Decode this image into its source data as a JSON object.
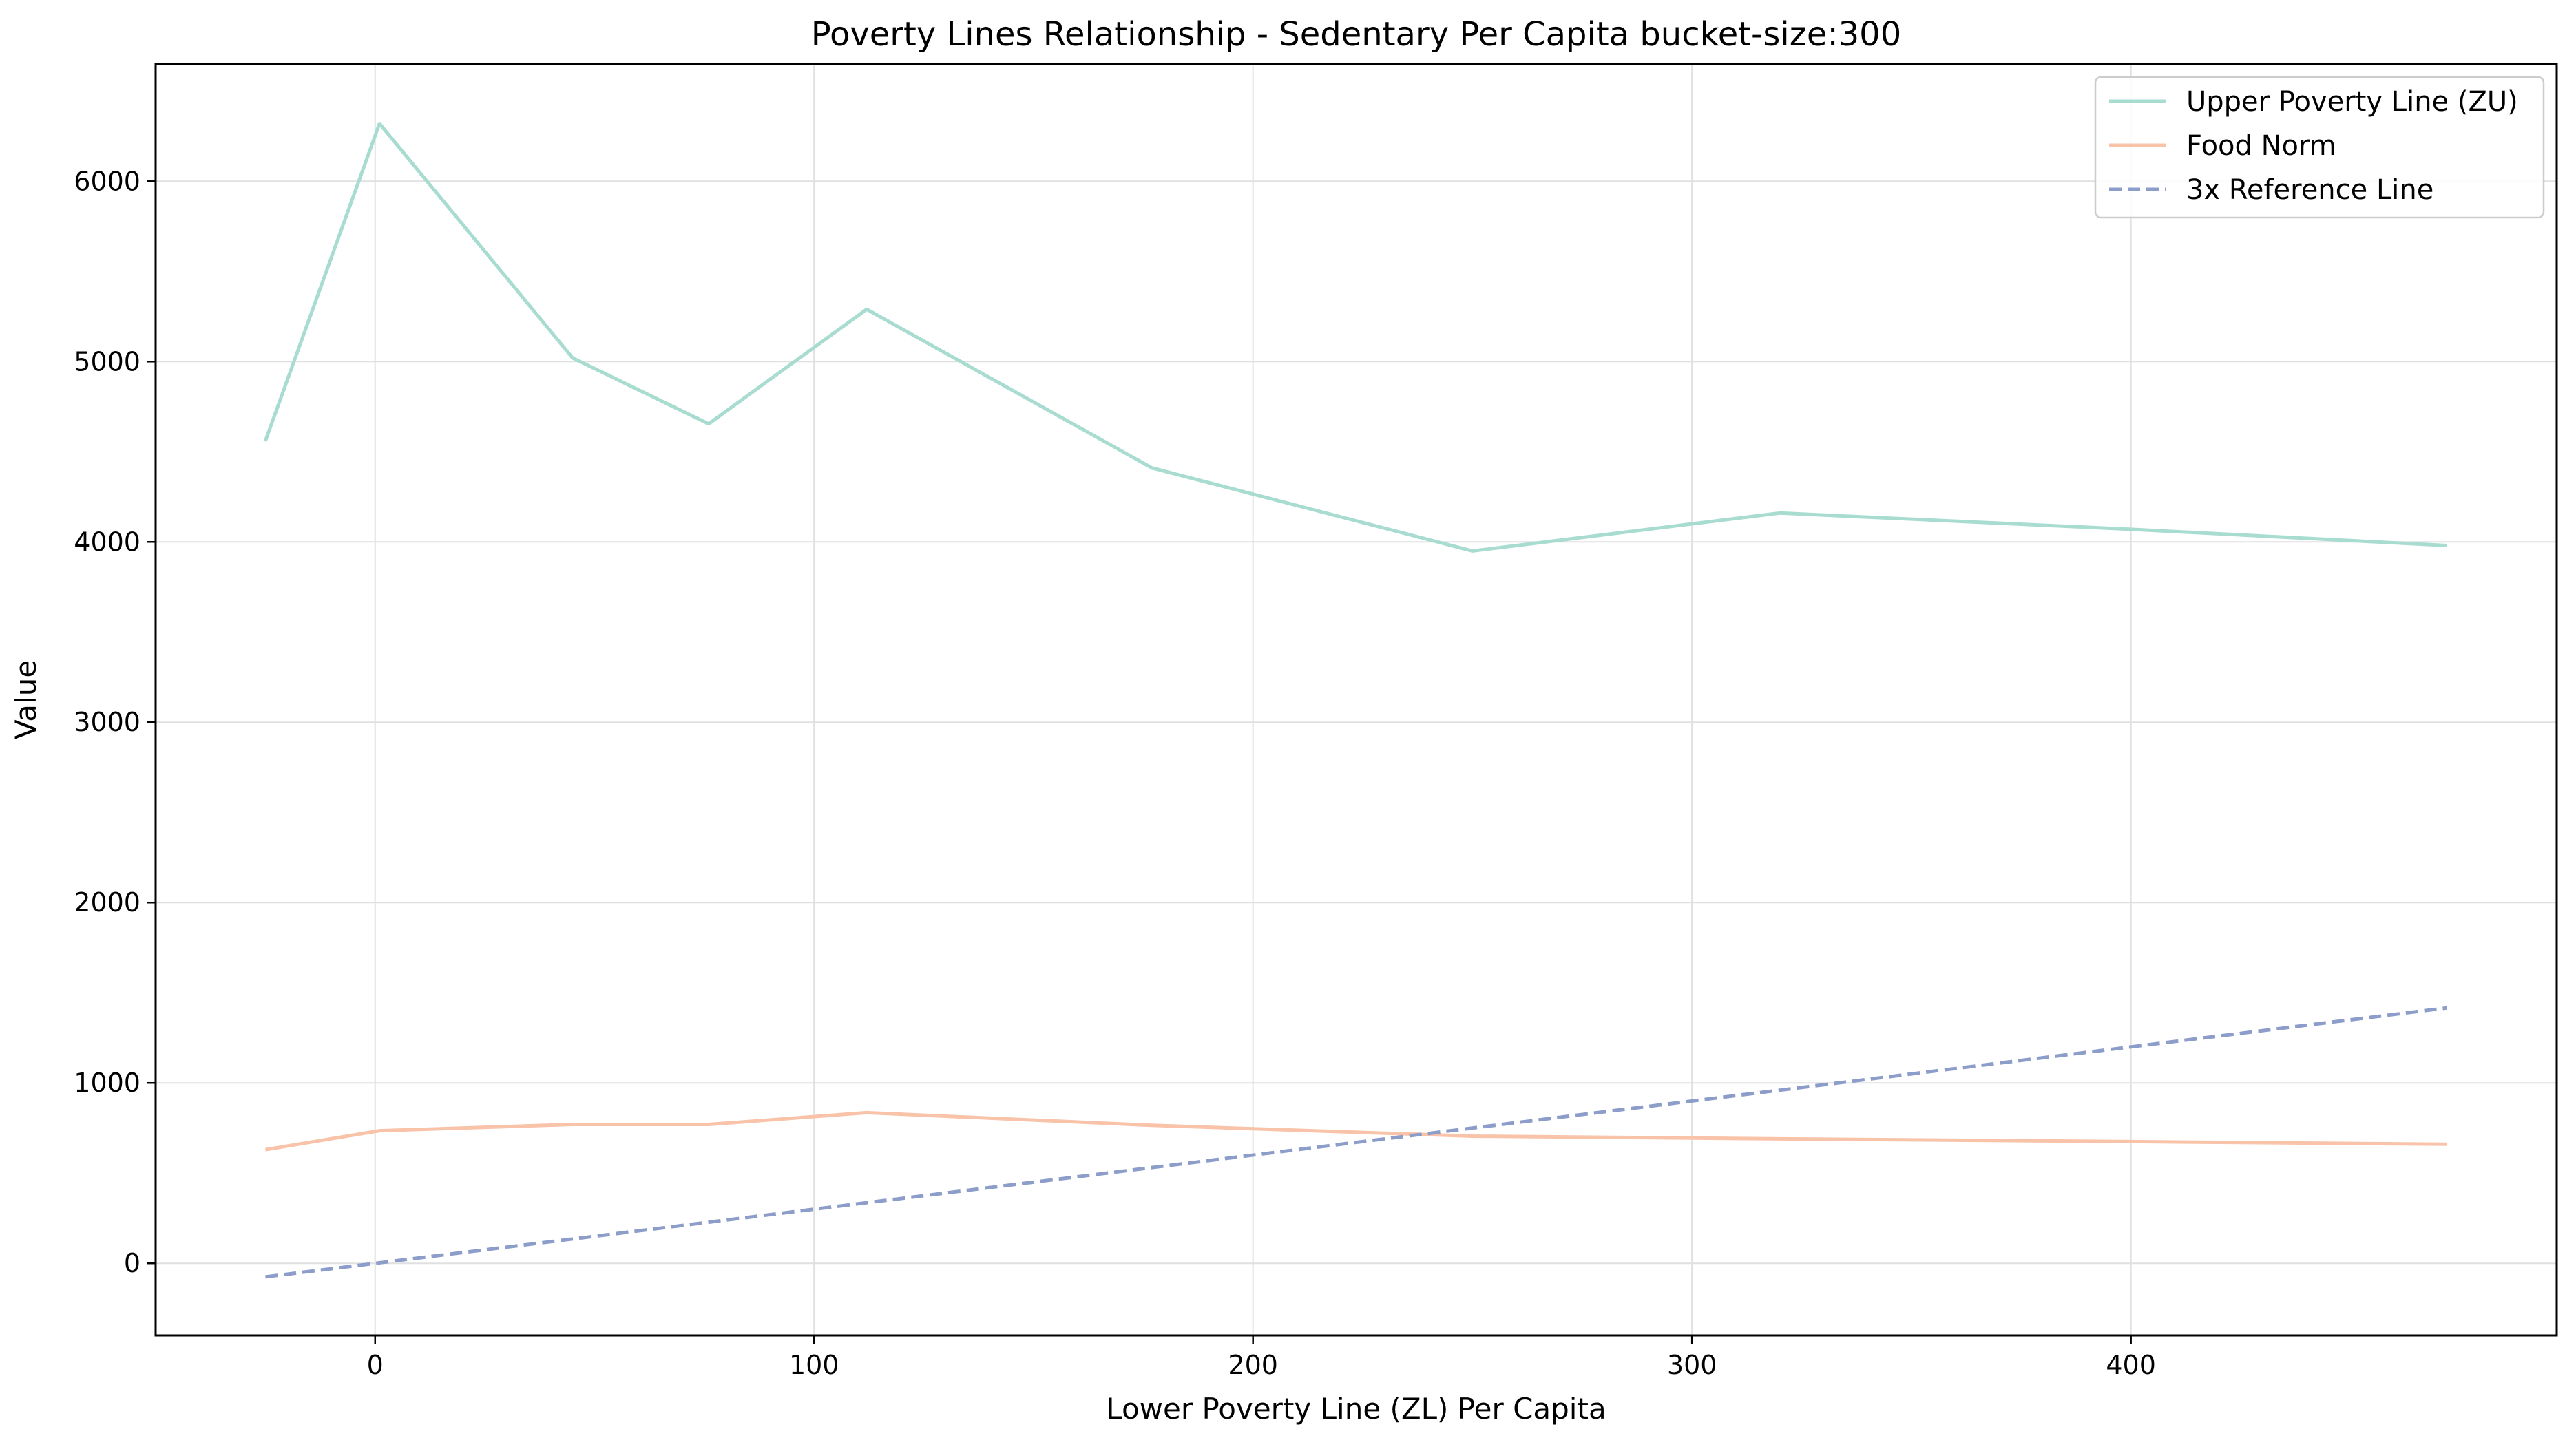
{
  "chart_data": {
    "type": "line",
    "title": "Poverty Lines Relationship - Sedentary Per Capita bucket-size:300",
    "xlabel": "Lower Poverty Line (ZL) Per Capita",
    "ylabel": "Value",
    "xlim": [
      -50,
      497
    ],
    "ylim": [
      -400,
      6650
    ],
    "xticks": [
      0,
      100,
      200,
      300,
      400
    ],
    "yticks": [
      0,
      1000,
      2000,
      3000,
      4000,
      5000,
      6000
    ],
    "grid": true,
    "legend_position": "top-right",
    "series": [
      {
        "name": "Upper Poverty Line (ZU)",
        "color": "#a8dcd0",
        "style": "solid",
        "points": [
          [
            -25,
            4560
          ],
          [
            1,
            6320
          ],
          [
            45,
            5020
          ],
          [
            76,
            4655
          ],
          [
            112,
            5290
          ],
          [
            177,
            4410
          ],
          [
            250,
            3950
          ],
          [
            320,
            4160
          ],
          [
            400,
            4070
          ],
          [
            472,
            3980
          ]
        ]
      },
      {
        "name": "Food Norm",
        "color": "#f8c3a8",
        "style": "solid",
        "points": [
          [
            -25,
            630
          ],
          [
            1,
            735
          ],
          [
            45,
            770
          ],
          [
            76,
            770
          ],
          [
            112,
            835
          ],
          [
            177,
            765
          ],
          [
            250,
            705
          ],
          [
            320,
            690
          ],
          [
            400,
            675
          ],
          [
            472,
            660
          ]
        ]
      },
      {
        "name": "3x Reference Line",
        "color": "#8c9dc9",
        "style": "dashed",
        "points": [
          [
            -25,
            -75
          ],
          [
            472,
            1416
          ]
        ]
      }
    ]
  }
}
